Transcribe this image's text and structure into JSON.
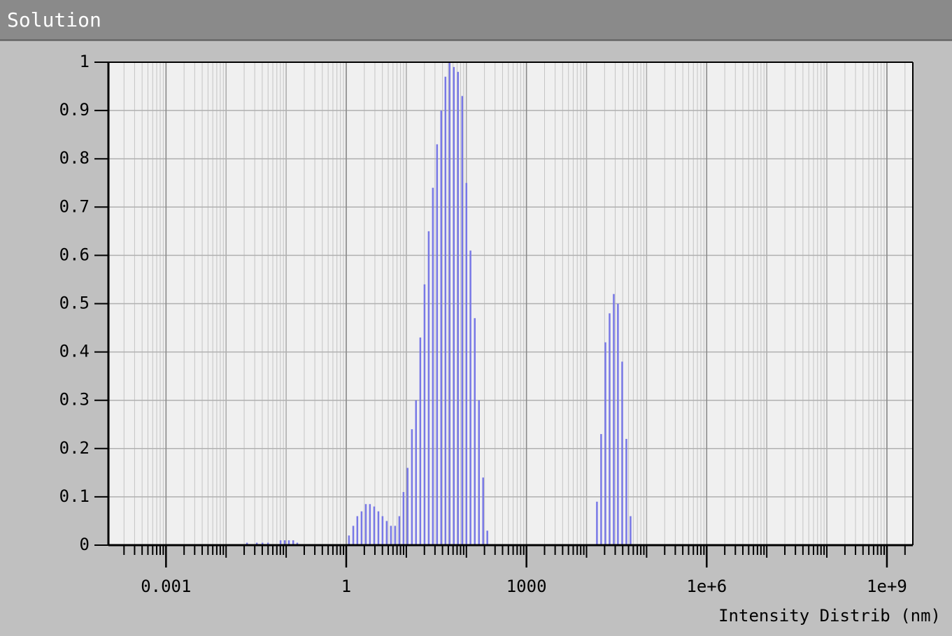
{
  "chart_data": {
    "type": "bar",
    "title": "Solution",
    "x_label": "Intensity Distrib (nm)",
    "x_scale": "log",
    "grid": true,
    "color": "#7878e6",
    "xlim": [
      0.00011,
      2700000000
    ],
    "xticks": [
      0.001,
      1,
      1000,
      {
        "value": 1000000,
        "label": "1e+6"
      },
      {
        "value": 1000000000,
        "label": "1e+9"
      }
    ],
    "ylim": [
      0,
      1
    ],
    "yticks": [
      0,
      0.1,
      0.2,
      0.3,
      0.4,
      0.5,
      0.6,
      0.7,
      0.8,
      0.9,
      1
    ],
    "x": [
      0.0223,
      0.0325,
      0.0403,
      0.0499,
      0.0807,
      0.0948,
      0.111,
      0.131,
      0.153,
      1.11,
      1.31,
      1.53,
      1.8,
      2.12,
      2.48,
      2.92,
      3.43,
      4.02,
      4.72,
      5.55,
      6.51,
      7.65,
      8.98,
      10.5,
      12.4,
      14.5,
      17.1,
      20.1,
      23.6,
      27.7,
      32.5,
      38.1,
      44.8,
      52.6,
      61.8,
      72.5,
      85.2,
      100,
      117,
      138,
      162,
      190,
      223,
      14900,
      17500,
      20600,
      24200,
      28400,
      33300,
      39200,
      46000,
      54000
    ],
    "values": [
      0.005,
      0.005,
      0.005,
      0.005,
      0.01,
      0.01,
      0.01,
      0.01,
      0.005,
      0.02,
      0.04,
      0.06,
      0.07,
      0.085,
      0.085,
      0.08,
      0.07,
      0.06,
      0.05,
      0.04,
      0.04,
      0.06,
      0.11,
      0.16,
      0.24,
      0.3,
      0.43,
      0.54,
      0.65,
      0.74,
      0.83,
      0.9,
      0.97,
      1.0,
      0.99,
      0.98,
      0.93,
      0.75,
      0.61,
      0.47,
      0.3,
      0.14,
      0.03,
      0.09,
      0.23,
      0.42,
      0.48,
      0.52,
      0.5,
      0.38,
      0.22,
      0.06
    ]
  }
}
